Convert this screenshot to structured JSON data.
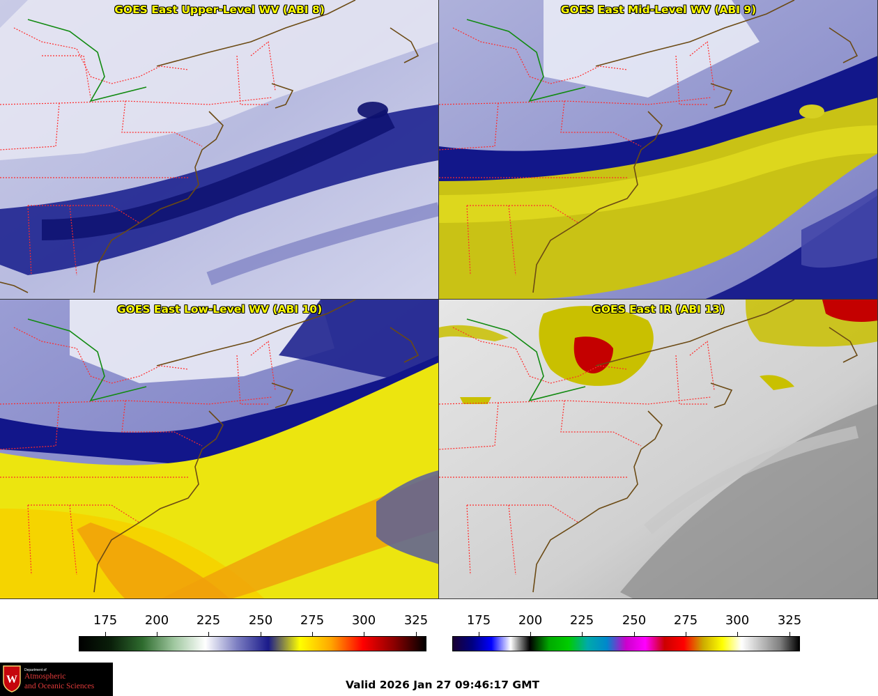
{
  "panels": [
    {
      "id": "p1",
      "title": "GOES East Upper-Level WV (ABI 8)",
      "scheme": "wv8"
    },
    {
      "id": "p2",
      "title": "GOES East Mid-Level WV (ABI 9)",
      "scheme": "wv9"
    },
    {
      "id": "p3",
      "title": "GOES East Low-Level WV (ABI 10)",
      "scheme": "wv10"
    },
    {
      "id": "p4",
      "title": "GOES East IR (ABI 13)",
      "scheme": "ir"
    }
  ],
  "colorbars": {
    "wv": {
      "ticks": [
        "175",
        "200",
        "225",
        "250",
        "275",
        "300",
        "325"
      ],
      "stops": [
        "#000000",
        "#0a1f0a",
        "#2e6b2e",
        "#9fc79f",
        "#ffffff",
        "#7d7fc2",
        "#1a1a8a",
        "#ffff00",
        "#ffa500",
        "#ff0000",
        "#8b0000",
        "#000000"
      ]
    },
    "ir": {
      "ticks": [
        "175",
        "200",
        "225",
        "250",
        "275",
        "300",
        "325"
      ],
      "stops": [
        "#1a0033",
        "#000080",
        "#0000ff",
        "#ffffff",
        "#000000",
        "#00aa00",
        "#00cc00",
        "#00aaaa",
        "#0088cc",
        "#cc00cc",
        "#ff00ff",
        "#cc0000",
        "#ff0000",
        "#ccaa00",
        "#ffff00",
        "#ffffff",
        "#bfbfbf",
        "#808080",
        "#000000"
      ]
    }
  },
  "logo": {
    "department": "Department of",
    "line1": "Atmospheric",
    "line2": "and Oceanic Sciences"
  },
  "valid_time": "Valid 2026 Jan 27 09:46:17 GMT"
}
